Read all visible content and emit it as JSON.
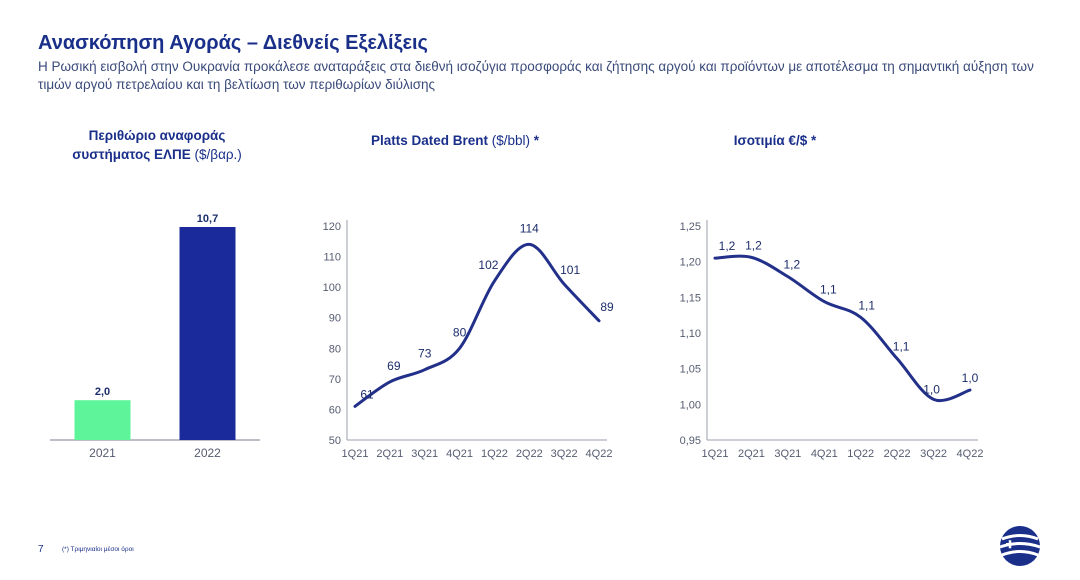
{
  "header": {
    "title": "Ανασκόπηση Αγοράς – Διεθνείς Εξελίξεις",
    "subtitle": "Η Ρωσική εισβολή στην Ουκρανία προκάλεσε αναταράξεις στα διεθνή ισοζύγια προσφοράς και ζήτησης αργού και προϊόντων με αποτέλεσμα τη σημαντική αύξηση των τιμών αργού πετρελαίου και τη βελτίωση των περιθωρίων διύλισης"
  },
  "charts": {
    "margin": {
      "title_line1": "Περιθώριο αναφοράς",
      "title_line2": "συστήματος ΕΛΠΕ",
      "unit": "($/βαρ.)"
    },
    "brent": {
      "title": "Platts Dated Brent",
      "unit": "($/bbl)",
      "suffix": " *"
    },
    "fx": {
      "title": "Ισοτιμία €/$",
      "suffix": " *"
    }
  },
  "chart_data": [
    {
      "type": "bar",
      "categories": [
        "2021",
        "2022"
      ],
      "values": [
        2.0,
        10.7
      ],
      "labels": [
        "2,0",
        "10,7"
      ],
      "colors": [
        "#5ef59a",
        "#1a2a9a"
      ],
      "ylim": [
        0,
        10.7
      ]
    },
    {
      "type": "line",
      "categories": [
        "1Q21",
        "2Q21",
        "3Q21",
        "4Q21",
        "1Q22",
        "2Q22",
        "3Q22",
        "4Q22"
      ],
      "values": [
        61,
        69,
        73,
        80,
        102,
        114,
        101,
        89
      ],
      "labels": [
        "61",
        "69",
        "73",
        "80",
        "102",
        "114",
        "101",
        "89"
      ],
      "yticks": [
        "50",
        "60",
        "70",
        "80",
        "90",
        "100",
        "110",
        "120"
      ],
      "ylim": [
        50,
        120
      ],
      "color": "#22308a"
    },
    {
      "type": "line",
      "categories": [
        "1Q21",
        "2Q21",
        "3Q21",
        "4Q21",
        "1Q22",
        "2Q22",
        "3Q22",
        "4Q22"
      ],
      "values": [
        1.205,
        1.206,
        1.179,
        1.144,
        1.122,
        1.064,
        1.007,
        1.02
      ],
      "labels": [
        "1,2",
        "1,2",
        "1,2",
        "1,1",
        "1,1",
        "1,1",
        "1,0",
        "1,0"
      ],
      "yticks": [
        "0,95",
        "1,00",
        "1,05",
        "1,10",
        "1,15",
        "1,20",
        "1,25"
      ],
      "ylim": [
        0.95,
        1.25
      ],
      "color": "#22308a"
    }
  ],
  "footer": {
    "page_number": "7",
    "note": "(*) Τριμηνιαίοι μέσοι όροι"
  }
}
